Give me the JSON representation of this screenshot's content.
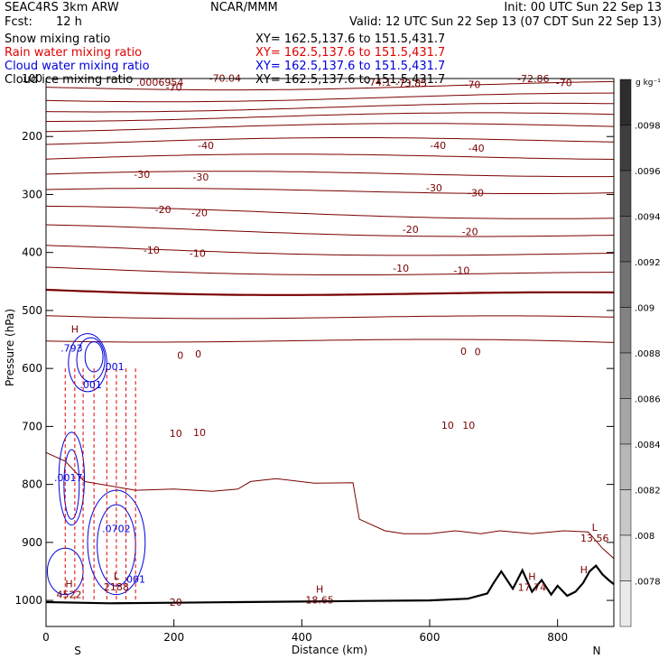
{
  "header": {
    "model": "SEAC4RS  3km ARW",
    "center": "NCAR/MMM",
    "init": "Init: 00 UTC Sun 22 Sep 13",
    "fcst_label": "Fcst:",
    "fcst_value": "12 h",
    "valid": "Valid: 12 UTC Sun 22 Sep 13 (07 CDT Sun 22 Sep 13)"
  },
  "fields": [
    {
      "name": "Snow mixing ratio",
      "xy": "XY= 162.5,137.6 to 151.5,431.7",
      "color": "#000000"
    },
    {
      "name": "Rain water mixing ratio",
      "xy": "XY= 162.5,137.6 to 151.5,431.7",
      "color": "#e00000"
    },
    {
      "name": "Cloud water mixing ratio",
      "xy": "XY= 162.5,137.6 to 151.5,431.7",
      "color": "#0000dd"
    },
    {
      "name": "Cloud ice mixing ratio",
      "xy": "XY= 162.5,137.6 to 151.5,431.7",
      "color": "#000000"
    }
  ],
  "colors": {
    "temperature": "#7a0000",
    "rain": "#e00000",
    "cloud": "#0000dd",
    "terrain": "#000000"
  },
  "chart_data": {
    "type": "cross-section",
    "xlabel": "Distance (km)",
    "ylabel": "Pressure (hPa)",
    "xlim": [
      0,
      888
    ],
    "ylim": [
      1045,
      100
    ],
    "x_ticks": [
      0,
      200,
      400,
      600,
      800
    ],
    "y_ticks": [
      100,
      200,
      300,
      400,
      500,
      600,
      700,
      800,
      900,
      1000
    ],
    "y_scale": "linear-reversed",
    "endpoints": {
      "left": "S",
      "right": "N"
    },
    "colorbar": {
      "unit": "g kg⁻¹",
      "ticks": [
        ".0078",
        ".008",
        ".0082",
        ".0084",
        ".0086",
        ".0088",
        ".009",
        ".0092",
        ".0094",
        ".0096",
        ".0098"
      ]
    },
    "temperature_levels": [
      {
        "t": -70,
        "p": 115
      },
      {
        "t": -60,
        "p": 135
      },
      {
        "t": -55,
        "p": 152
      },
      {
        "t": -50,
        "p": 168
      },
      {
        "t": -45,
        "p": 186
      },
      {
        "t": -40,
        "p": 210
      },
      {
        "t": -35,
        "p": 238
      },
      {
        "t": -30,
        "p": 267
      },
      {
        "t": -25,
        "p": 296
      },
      {
        "t": -20,
        "p": 326
      },
      {
        "t": -15,
        "p": 358
      },
      {
        "t": -10,
        "p": 392
      },
      {
        "t": -5,
        "p": 427
      },
      {
        "t": 0,
        "p": 463
      },
      {
        "t": 5,
        "p": 505
      },
      {
        "t": 10,
        "p": 547
      }
    ],
    "isotherm_labels": [
      {
        "text": "-70",
        "x": 200,
        "p": 115
      },
      {
        "text": "-70",
        "x": 667,
        "p": 110
      },
      {
        "text": "-70",
        "x": 810,
        "p": 107
      },
      {
        "text": "-40",
        "x": 250,
        "p": 215
      },
      {
        "text": "-40",
        "x": 613,
        "p": 215
      },
      {
        "text": "-40",
        "x": 673,
        "p": 220
      },
      {
        "text": "-30",
        "x": 150,
        "p": 265
      },
      {
        "text": "-30",
        "x": 242,
        "p": 270
      },
      {
        "text": "-30",
        "x": 607,
        "p": 288
      },
      {
        "text": "-30",
        "x": 672,
        "p": 297
      },
      {
        "text": "-20",
        "x": 183,
        "p": 326
      },
      {
        "text": "-20",
        "x": 240,
        "p": 331
      },
      {
        "text": "-20",
        "x": 570,
        "p": 360
      },
      {
        "text": "-20",
        "x": 663,
        "p": 364
      },
      {
        "text": "-10",
        "x": 165,
        "p": 396
      },
      {
        "text": "-10",
        "x": 237,
        "p": 401
      },
      {
        "text": "-10",
        "x": 555,
        "p": 427
      },
      {
        "text": "-10",
        "x": 650,
        "p": 431
      },
      {
        "text": "0",
        "x": 210,
        "p": 577
      },
      {
        "text": "0",
        "x": 238,
        "p": 575
      },
      {
        "text": "0",
        "x": 653,
        "p": 570
      },
      {
        "text": "0",
        "x": 675,
        "p": 571
      },
      {
        "text": "10",
        "x": 203,
        "p": 712
      },
      {
        "text": "10",
        "x": 240,
        "p": 710
      },
      {
        "text": "10",
        "x": 628,
        "p": 698
      },
      {
        "text": "10",
        "x": 661,
        "p": 698
      },
      {
        "text": "20",
        "x": 203,
        "p": 1003
      }
    ],
    "top_annotations": [
      {
        "text": ".0006954",
        "x": 178,
        "p": 106
      },
      {
        "text": "-70.04",
        "x": 280,
        "p": 99
      },
      {
        "text": "-74.1",
        "x": 520,
        "p": 106
      },
      {
        "text": "-73.85",
        "x": 571,
        "p": 108
      },
      {
        "text": "-72.86",
        "x": 762,
        "p": 100
      }
    ],
    "extrema": [
      {
        "letter": "H",
        "value": "18.65",
        "x": 428,
        "p": 987
      },
      {
        "letter": "H",
        "value": "17.74",
        "x": 760,
        "p": 965
      },
      {
        "letter": "L",
        "value": "13.56",
        "x": 858,
        "p": 880
      },
      {
        "letter": "H",
        "value": "",
        "x": 841,
        "p": 953
      },
      {
        "letter": "H",
        "value": "4522",
        "x": 36,
        "p": 977
      },
      {
        "letter": "L",
        "value": "2188",
        "x": 110,
        "p": 964
      },
      {
        "letter": "H",
        "value": "",
        "x": 45,
        "p": 538
      }
    ],
    "cloud_labels": [
      {
        "text": ".793",
        "x": 40,
        "p": 565,
        "color": "#0000dd"
      },
      {
        "text": ".001",
        "x": 105,
        "p": 597,
        "color": "#0000dd"
      },
      {
        "text": ".0017",
        "x": 35,
        "p": 788,
        "color": "#0000dd"
      },
      {
        "text": ".0702",
        "x": 110,
        "p": 876,
        "color": "#0000dd"
      },
      {
        "text": ".001",
        "x": 138,
        "p": 963,
        "color": "#0000dd"
      },
      {
        "text": ".001",
        "x": 70,
        "p": 628,
        "color": "#0000dd"
      }
    ],
    "terrain": [
      [
        0,
        1003
      ],
      [
        100,
        1005
      ],
      [
        200,
        1004
      ],
      [
        300,
        1003
      ],
      [
        400,
        1002
      ],
      [
        500,
        1001
      ],
      [
        600,
        1000
      ],
      [
        660,
        997
      ],
      [
        690,
        988
      ],
      [
        700,
        970
      ],
      [
        712,
        950
      ],
      [
        730,
        980
      ],
      [
        745,
        948
      ],
      [
        760,
        985
      ],
      [
        775,
        965
      ],
      [
        790,
        990
      ],
      [
        800,
        975
      ],
      [
        815,
        992
      ],
      [
        828,
        985
      ],
      [
        840,
        970
      ],
      [
        850,
        950
      ],
      [
        860,
        940
      ],
      [
        870,
        955
      ],
      [
        880,
        965
      ],
      [
        888,
        972
      ]
    ],
    "boundary_layer": [
      [
        0,
        745
      ],
      [
        30,
        760
      ],
      [
        60,
        795
      ],
      [
        140,
        810
      ],
      [
        200,
        808
      ],
      [
        260,
        812
      ],
      [
        300,
        808
      ],
      [
        320,
        795
      ],
      [
        360,
        790
      ],
      [
        420,
        798
      ],
      [
        480,
        797
      ],
      [
        490,
        860
      ],
      [
        530,
        880
      ],
      [
        560,
        885
      ],
      [
        600,
        885
      ],
      [
        640,
        880
      ],
      [
        680,
        885
      ],
      [
        710,
        880
      ],
      [
        760,
        885
      ],
      [
        810,
        880
      ],
      [
        848,
        882
      ],
      [
        870,
        910
      ],
      [
        888,
        928
      ]
    ]
  }
}
